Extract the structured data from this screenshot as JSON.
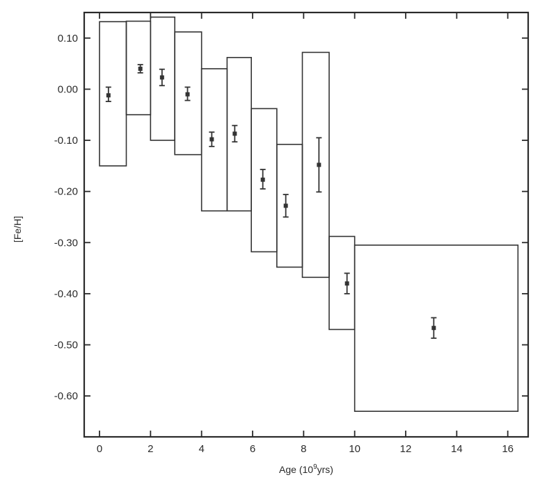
{
  "chart_data": {
    "type": "scatter",
    "title": "",
    "xlabel": "Age (10",
    "xlabel_sup": "9",
    "xlabel_tail": "yrs)",
    "ylabel": "[Fe/H]",
    "xlim": [
      -0.6,
      16.8
    ],
    "ylim": [
      -0.68,
      0.15
    ],
    "x_ticks": [
      0,
      2,
      4,
      6,
      8,
      10,
      12,
      14,
      16
    ],
    "x_tick_labels": [
      "0",
      "2",
      "4",
      "6",
      "8",
      "10",
      "12",
      "14",
      "16"
    ],
    "y_ticks": [
      0.1,
      0.0,
      -0.1,
      -0.2,
      -0.3,
      -0.4,
      -0.5,
      -0.6
    ],
    "y_tick_labels": [
      "0.10",
      "0.00",
      "-0.10",
      "-0.20",
      "-0.30",
      "-0.40",
      "-0.50",
      "-0.60"
    ],
    "grid": false,
    "legend": "none",
    "points": [
      {
        "age": 0.35,
        "feh": -0.012,
        "err_low": 0.012,
        "err_high": 0.016
      },
      {
        "age": 1.6,
        "feh": 0.04,
        "err_low": 0.008,
        "err_high": 0.008
      },
      {
        "age": 2.45,
        "feh": 0.023,
        "err_low": 0.016,
        "err_high": 0.016
      },
      {
        "age": 3.45,
        "feh": -0.01,
        "err_low": 0.012,
        "err_high": 0.014
      },
      {
        "age": 4.4,
        "feh": -0.098,
        "err_low": 0.014,
        "err_high": 0.014
      },
      {
        "age": 5.3,
        "feh": -0.087,
        "err_low": 0.016,
        "err_high": 0.016
      },
      {
        "age": 6.4,
        "feh": -0.177,
        "err_low": 0.018,
        "err_high": 0.02
      },
      {
        "age": 7.3,
        "feh": -0.228,
        "err_low": 0.022,
        "err_high": 0.022
      },
      {
        "age": 8.6,
        "feh": -0.148,
        "err_low": 0.053,
        "err_high": 0.053
      },
      {
        "age": 9.7,
        "feh": -0.38,
        "err_low": 0.02,
        "err_high": 0.02
      },
      {
        "age": 13.1,
        "feh": -0.467,
        "err_low": 0.02,
        "err_high": 0.02
      }
    ],
    "ranges": [
      {
        "x0": 0.0,
        "x1": 1.05,
        "y0": -0.15,
        "y1": 0.132
      },
      {
        "x0": 1.05,
        "x1": 2.0,
        "y0": -0.05,
        "y1": 0.133
      },
      {
        "x0": 2.0,
        "x1": 2.95,
        "y0": -0.1,
        "y1": 0.141
      },
      {
        "x0": 2.95,
        "x1": 4.0,
        "y0": -0.128,
        "y1": 0.112
      },
      {
        "x0": 4.0,
        "x1": 5.0,
        "y0": -0.238,
        "y1": 0.04
      },
      {
        "x0": 5.0,
        "x1": 5.95,
        "y0": -0.238,
        "y1": 0.062
      },
      {
        "x0": 5.95,
        "x1": 6.95,
        "y0": -0.318,
        "y1": -0.038
      },
      {
        "x0": 6.95,
        "x1": 7.95,
        "y0": -0.348,
        "y1": -0.108
      },
      {
        "x0": 7.95,
        "x1": 9.0,
        "y0": -0.368,
        "y1": 0.072
      },
      {
        "x0": 9.0,
        "x1": 10.0,
        "y0": -0.47,
        "y1": -0.288
      },
      {
        "x0": 10.0,
        "x1": 16.4,
        "y0": -0.63,
        "y1": -0.305
      }
    ]
  }
}
